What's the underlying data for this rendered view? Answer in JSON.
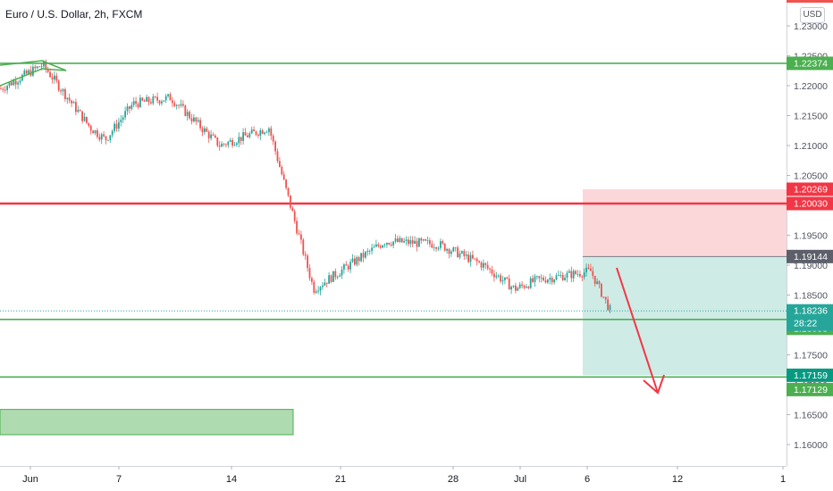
{
  "title": "Euro / U.S. Dollar, 2h, FXCM",
  "currency_label": "USD",
  "chart_data": {
    "type": "candlestick",
    "y_ticks": [
      "1.23000",
      "1.22500",
      "1.22000",
      "1.21500",
      "1.21000",
      "1.20500",
      "1.20000",
      "1.19500",
      "1.19000",
      "1.18500",
      "1.18000",
      "1.17500",
      "1.17000",
      "1.16500",
      "1.16000"
    ],
    "x_ticks": [
      "Jun",
      "7",
      "14",
      "21",
      "28",
      "Jul",
      "6",
      "12",
      "1"
    ],
    "ylim": [
      1.1595,
      1.2305
    ],
    "horizontal_levels": [
      {
        "price": 1.22374,
        "label": "1.22374",
        "color": "#4caf50"
      },
      {
        "price": 1.2003,
        "label": "1.20030",
        "color": "#f23645"
      },
      {
        "price": 1.18093,
        "label": "1.18093",
        "color": "#4caf50"
      },
      {
        "price": 1.17129,
        "label": "1.17129",
        "color": "#4caf50"
      }
    ],
    "price_markers": [
      {
        "price": 1.20269,
        "label": "1.20269",
        "color": "#f23645"
      },
      {
        "price": 1.19144,
        "label": "1.19144",
        "color": "#5d606b"
      },
      {
        "price": 1.18236,
        "label": "1.18236",
        "sub_label": "28:22",
        "color": "#26a69a"
      },
      {
        "price": 1.17159,
        "label": "1.17159",
        "color": "#089981"
      }
    ],
    "short_position": {
      "entry": 1.19144,
      "stop": 1.20269,
      "target": 1.17159
    },
    "demand_zone": {
      "top": 1.16588,
      "bottom": 1.16165
    },
    "anchors": [
      {
        "label": "Jun",
        "price_close": 1.2195
      },
      {
        "label": "3",
        "price_close": 1.2235
      },
      {
        "label": "7",
        "price_close": 1.213
      },
      {
        "label": "9",
        "price_close": 1.211
      },
      {
        "label": "11",
        "price_close": 1.217
      },
      {
        "label": "14",
        "price_close": 1.218
      },
      {
        "label": "16",
        "price_close": 1.21
      },
      {
        "label": "17",
        "price_close": 1.213
      },
      {
        "label": "18",
        "price_close": 1.2005
      },
      {
        "label": "21",
        "price_close": 1.186
      },
      {
        "label": "22",
        "price_close": 1.191
      },
      {
        "label": "25",
        "price_close": 1.194
      },
      {
        "label": "28",
        "price_close": 1.1935
      },
      {
        "label": "30",
        "price_close": 1.19
      },
      {
        "label": "Jul",
        "price_close": 1.186
      },
      {
        "label": "3",
        "price_close": 1.1875
      },
      {
        "label": "6",
        "price_close": 1.189
      },
      {
        "label": "7",
        "price_close": 1.1824
      }
    ],
    "colors": {
      "up": "#26a69a",
      "down": "#ef5350"
    }
  }
}
